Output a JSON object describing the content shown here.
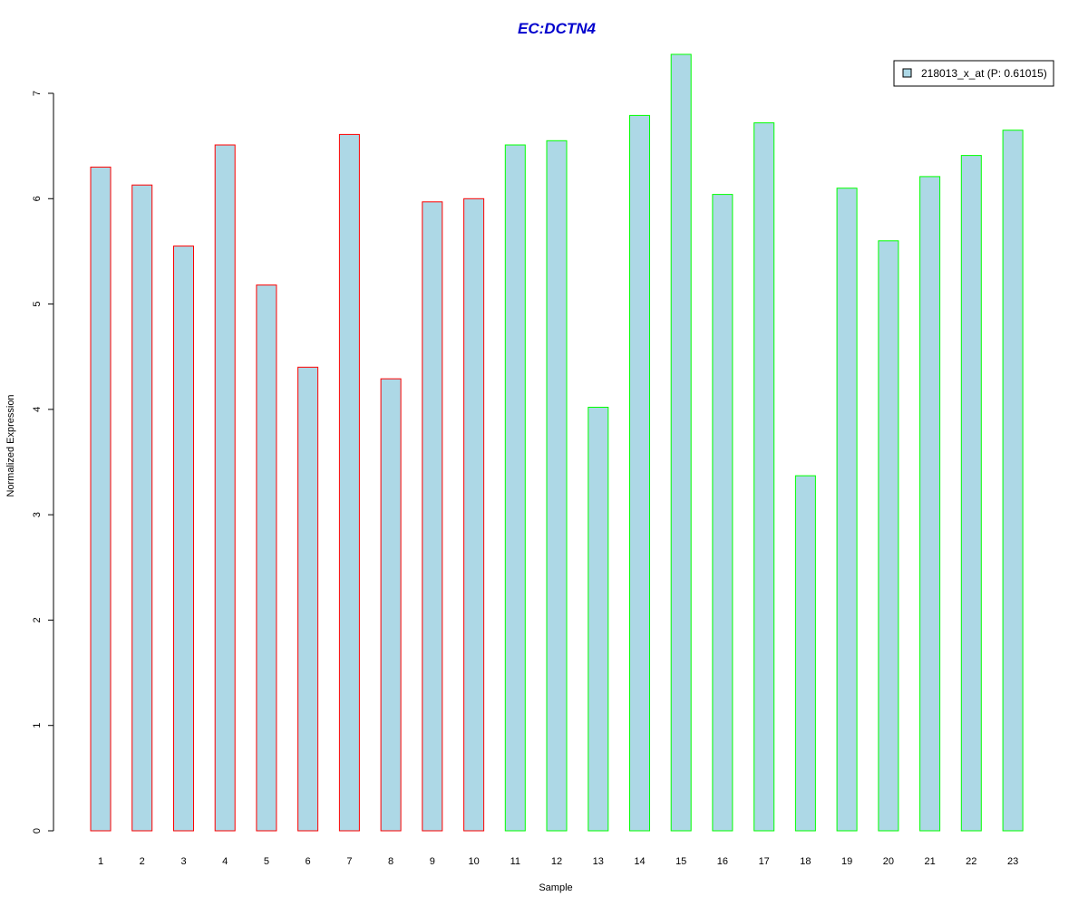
{
  "chart_data": {
    "type": "bar",
    "title": "EC:DCTN4",
    "xlabel": "Sample",
    "ylabel": "Normalized Expression",
    "categories": [
      "1",
      "2",
      "3",
      "4",
      "5",
      "6",
      "7",
      "8",
      "9",
      "10",
      "11",
      "12",
      "13",
      "14",
      "15",
      "16",
      "17",
      "18",
      "19",
      "20",
      "21",
      "22",
      "23"
    ],
    "series": [
      {
        "name": "218013_x_at (P: 0.61015)",
        "values": [
          6.3,
          6.13,
          5.55,
          6.51,
          5.18,
          4.4,
          6.61,
          4.29,
          5.97,
          6.0,
          6.51,
          6.55,
          4.02,
          6.79,
          7.37,
          6.04,
          6.72,
          3.37,
          6.1,
          5.6,
          6.21,
          6.41,
          6.65
        ]
      }
    ],
    "ylim": [
      0,
      7
    ],
    "yticks": [
      0,
      1,
      2,
      3,
      4,
      5,
      6,
      7
    ],
    "grid": false,
    "legend_position": "top-right",
    "bar_fill": "#add8e6",
    "title_color": "#0000cd",
    "group_border_colors": [
      {
        "samples": [
          1,
          10
        ],
        "color": "#ff0000"
      },
      {
        "samples": [
          11,
          23
        ],
        "color": "#00ff00"
      }
    ]
  }
}
